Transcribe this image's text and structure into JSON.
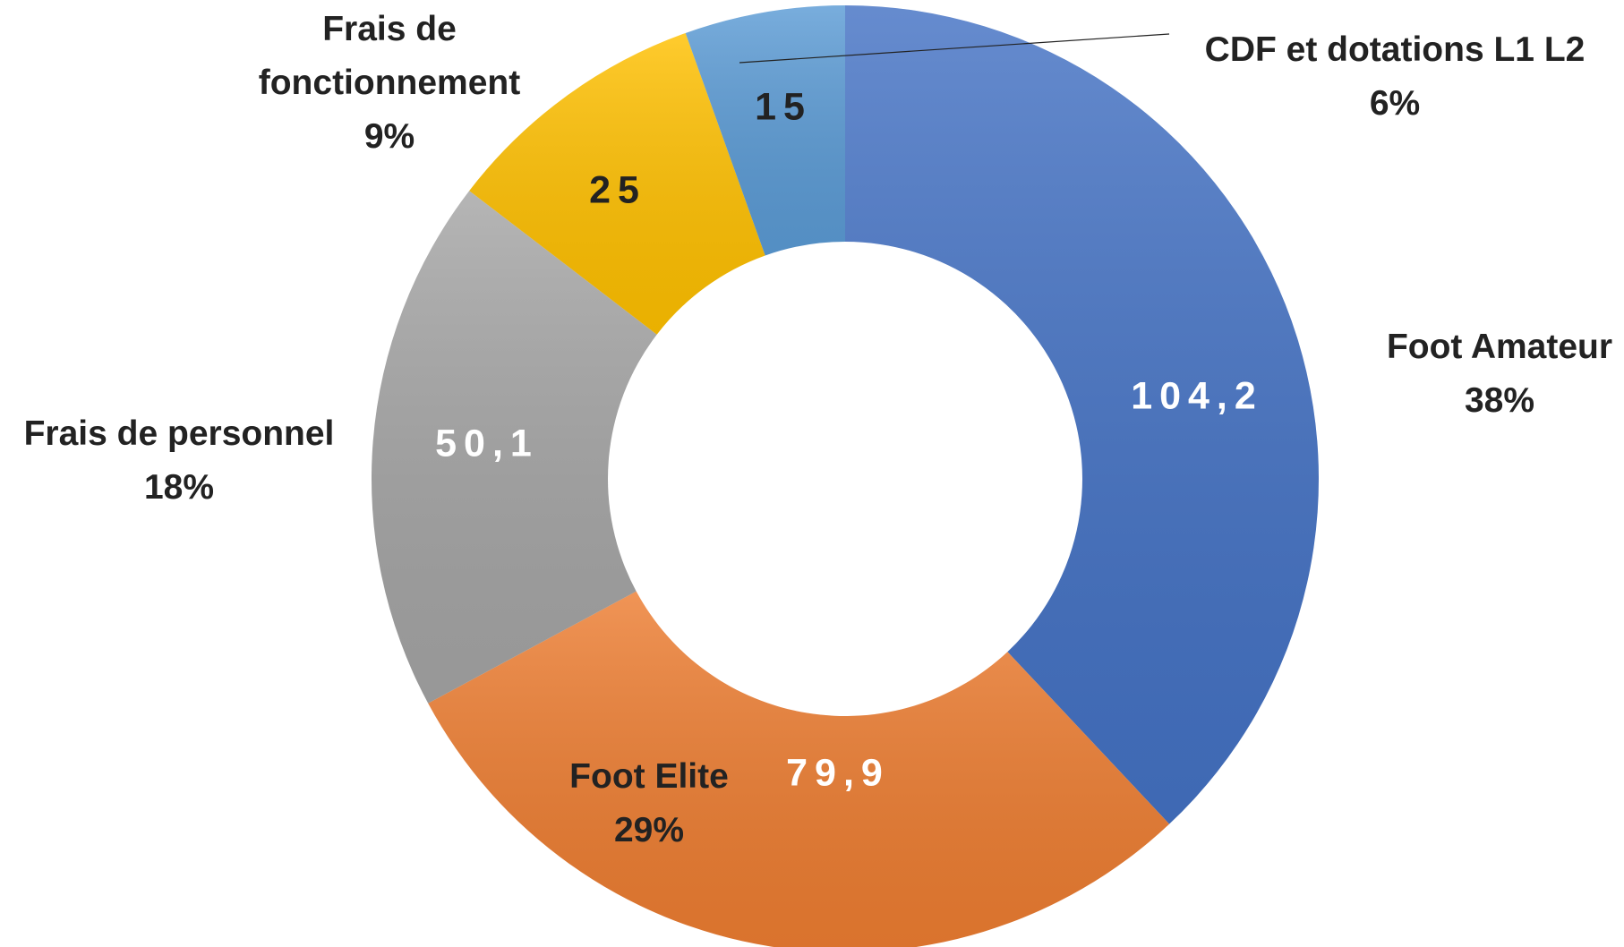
{
  "chart_data": {
    "type": "donut",
    "categories": [
      "Foot Amateur",
      "Foot Elite",
      "Frais de personnel",
      "Frais de fonctionnement",
      "CDF et dotations L1 L2"
    ],
    "values": [
      104.2,
      79.9,
      50.1,
      25,
      15
    ],
    "value_labels": [
      "104,2",
      "79,9",
      "50,1",
      "25",
      "15"
    ],
    "percent_labels": [
      "38%",
      "29%",
      "18%",
      "9%",
      "6%"
    ],
    "colors": [
      "#4472c4",
      "#ed7d31",
      "#a5a5a5",
      "#ffc000",
      "#5b9bd5"
    ]
  }
}
